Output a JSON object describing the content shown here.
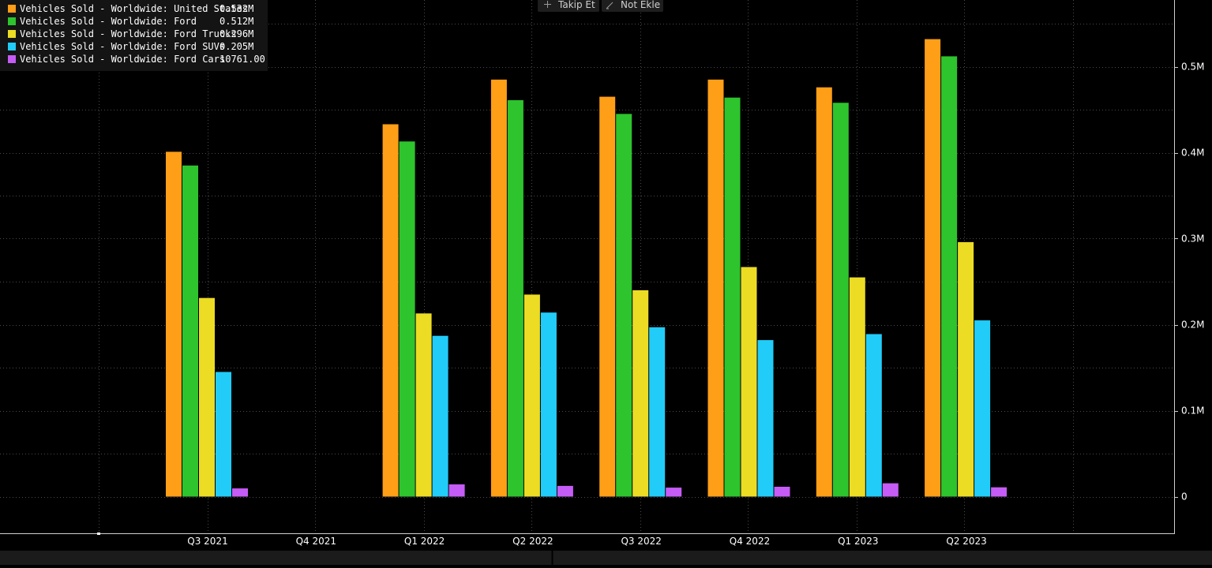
{
  "toolbar": {
    "follow_label": "Takip Et",
    "note_label": "Not Ekle"
  },
  "chart_data": {
    "type": "bar",
    "categories": [
      "Q3 2021",
      "Q4 2021",
      "Q1 2022",
      "Q2 2022",
      "Q3 2022",
      "Q4 2022",
      "Q1 2023",
      "Q2 2023"
    ],
    "y_ticks": [
      "0",
      "0.1M",
      "0.2M",
      "0.3M",
      "0.4M",
      "0.5M"
    ],
    "ylim": [
      0,
      0.56
    ],
    "y_axis_position": "right",
    "grid": true,
    "legend_position": "top-left",
    "series": [
      {
        "name": "Vehicles Sold - Worldwide: United States",
        "last_value": "0.532M",
        "color": "#ff9e17",
        "values": [
          0.401,
          null,
          0.433,
          0.485,
          0.465,
          0.485,
          0.476,
          0.532
        ]
      },
      {
        "name": "Vehicles Sold - Worldwide: Ford",
        "last_value": "0.512M",
        "color": "#2dc42d",
        "values": [
          0.385,
          null,
          0.413,
          0.461,
          0.445,
          0.464,
          0.458,
          0.512
        ]
      },
      {
        "name": "Vehicles Sold - Worldwide: Ford Trucks",
        "last_value": "0.296M",
        "color": "#ecdc24",
        "values": [
          0.231,
          null,
          0.213,
          0.235,
          0.24,
          0.267,
          0.255,
          0.296
        ]
      },
      {
        "name": "Vehicles Sold - Worldwide: Ford SUVs",
        "last_value": "0.205M",
        "color": "#22ccf8",
        "values": [
          0.145,
          null,
          0.187,
          0.214,
          0.197,
          0.182,
          0.189,
          0.205
        ]
      },
      {
        "name": "Vehicles Sold - Worldwide: Ford Cars",
        "last_value": "10761.00",
        "color": "#c55cf5",
        "values": [
          0.0095,
          null,
          0.0142,
          0.0125,
          0.0105,
          0.0115,
          0.0155,
          0.0108
        ]
      }
    ]
  }
}
